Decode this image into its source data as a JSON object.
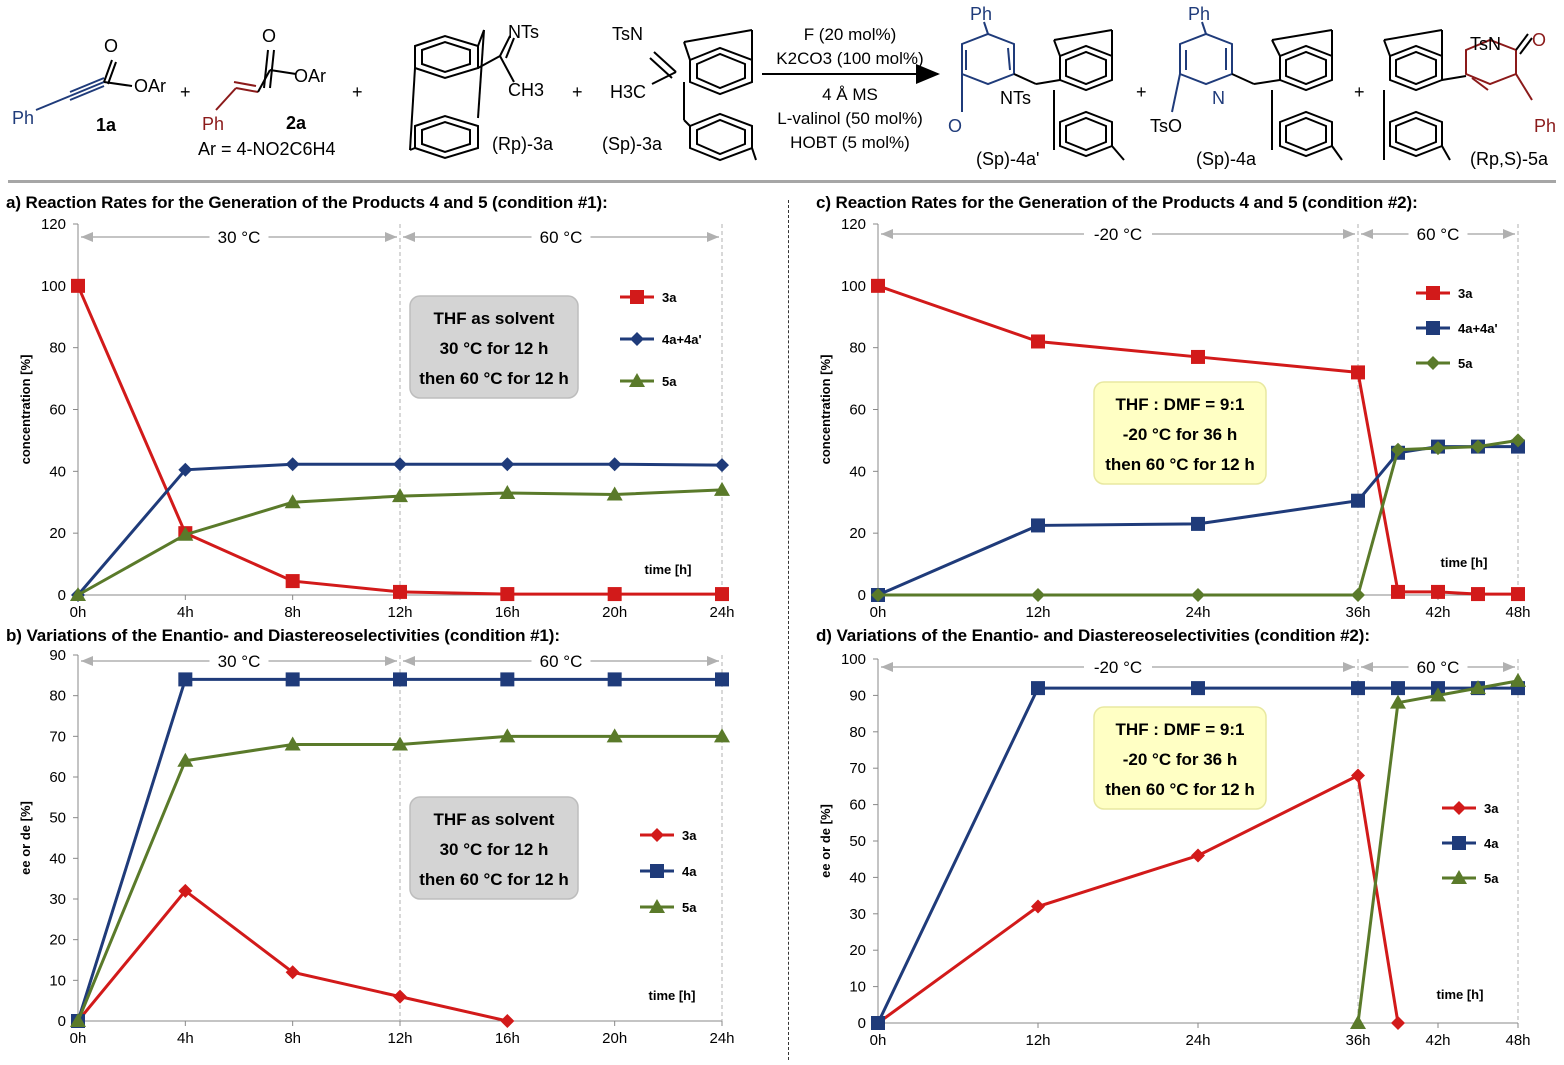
{
  "scheme": {
    "reagents": [
      {
        "id": "1a",
        "label": "1a",
        "group": "OAr",
        "substituent": "Ph"
      },
      {
        "id": "2a",
        "label": "2a",
        "group": "OAr",
        "substituent": "Ph",
        "note": "Ar = 4-NO2C6H4"
      },
      {
        "id": "Rp-3a",
        "label": "(Rp)-3a",
        "group": "NTs",
        "substituent": "CH3"
      },
      {
        "id": "Sp-3a",
        "label": "(Sp)-3a",
        "group": "TsN",
        "substituent": "H3C"
      }
    ],
    "conditions": [
      "F (20 mol%)",
      "K2CO3 (100 mol%)",
      "4 Å MS",
      "L-valinol (50 mol%)",
      "HOBT (5 mol%)"
    ],
    "products": [
      {
        "id": "Sp-4a'",
        "label": "(Sp)-4a'",
        "groups": [
          "Ph",
          "NTs",
          "O"
        ]
      },
      {
        "id": "Sp-4a",
        "label": "(Sp)-4a",
        "groups": [
          "Ph",
          "N",
          "TsO"
        ]
      },
      {
        "id": "RpS-5a",
        "label": "(Rp,S)-5a",
        "groups": [
          "TsN",
          "O",
          "Ph"
        ]
      }
    ],
    "plus": "+"
  },
  "chart_data": [
    {
      "panel": "a",
      "type": "line",
      "title": "a) Reaction Rates for the Generation of the Products 4 and 5 (condition #1):",
      "xlabel": "time [h]",
      "ylabel": "concentration [%]",
      "xlim": [
        0,
        24
      ],
      "ylim": [
        0,
        120
      ],
      "yticks": [
        0,
        20,
        40,
        60,
        80,
        100,
        120
      ],
      "xticks": [
        0,
        4,
        8,
        12,
        16,
        20,
        24
      ],
      "xtick_labels": [
        "0h",
        "4h",
        "8h",
        "12h",
        "16h",
        "20h",
        "24h"
      ],
      "phase_boundaries": [
        12,
        24
      ],
      "phases": [
        {
          "label": "30 °C",
          "from": 0,
          "to": 12
        },
        {
          "label": "60 °C",
          "from": 12,
          "to": 24
        }
      ],
      "annotation": {
        "lines": [
          "THF as solvent",
          "30 °C for 12 h",
          "then 60 °C for 12 h"
        ],
        "style": "gray"
      },
      "legend_position": "right",
      "series": [
        {
          "name": "3a",
          "color": "#d21a1a",
          "marker": "square",
          "x": [
            0,
            4,
            8,
            12,
            16,
            20,
            24
          ],
          "values": [
            100,
            20,
            4.5,
            1,
            0.3,
            0.3,
            0.3
          ]
        },
        {
          "name": "4a+4a'",
          "color": "#1f3b7a",
          "marker": "diamond",
          "x": [
            0,
            4,
            8,
            12,
            16,
            20,
            24
          ],
          "values": [
            0,
            40.5,
            42.3,
            42.3,
            42.3,
            42.3,
            42
          ]
        },
        {
          "name": "5a",
          "color": "#5a7a2a",
          "marker": "triangle",
          "x": [
            0,
            4,
            8,
            12,
            16,
            20,
            24
          ],
          "values": [
            0,
            19.5,
            30,
            32,
            33,
            32.5,
            34
          ]
        }
      ]
    },
    {
      "panel": "b",
      "type": "line",
      "title": "b) Variations of the Enantio- and Diastereoselectivities (condition #1):",
      "xlabel": "time [h]",
      "ylabel": "ee or de [%]",
      "xlim": [
        0,
        24
      ],
      "ylim": [
        0,
        90
      ],
      "yticks": [
        0,
        10,
        20,
        30,
        40,
        50,
        60,
        70,
        80,
        90
      ],
      "xticks": [
        0,
        4,
        8,
        12,
        16,
        20,
        24
      ],
      "xtick_labels": [
        "0h",
        "4h",
        "8h",
        "12h",
        "16h",
        "20h",
        "24h"
      ],
      "phase_boundaries": [
        12,
        24
      ],
      "phases": [
        {
          "label": "30 °C",
          "from": 0,
          "to": 12
        },
        {
          "label": "60 °C",
          "from": 12,
          "to": 24
        }
      ],
      "annotation": {
        "lines": [
          "THF as solvent",
          "30 °C for 12 h",
          "then 60 °C for 12 h"
        ],
        "style": "gray"
      },
      "legend_position": "right",
      "series": [
        {
          "name": "3a",
          "color": "#d21a1a",
          "marker": "diamond",
          "x": [
            0,
            4,
            8,
            12,
            16
          ],
          "values": [
            0,
            32,
            12,
            6,
            0
          ]
        },
        {
          "name": "4a",
          "color": "#1f3b7a",
          "marker": "square",
          "x": [
            0,
            4,
            8,
            12,
            16,
            20,
            24
          ],
          "values": [
            0,
            84,
            84,
            84,
            84,
            84,
            84
          ]
        },
        {
          "name": "5a",
          "color": "#5a7a2a",
          "marker": "triangle",
          "x": [
            0,
            4,
            8,
            12,
            16,
            20,
            24
          ],
          "values": [
            0,
            64,
            68,
            68,
            70,
            70,
            70
          ]
        }
      ]
    },
    {
      "panel": "c",
      "type": "line",
      "title": "c) Reaction Rates for the Generation of the Products 4 and 5 (condition #2):",
      "xlabel": "time [h]",
      "ylabel": "concentration [%]",
      "xlim": [
        0,
        48
      ],
      "ylim": [
        0,
        120
      ],
      "yticks": [
        0,
        20,
        40,
        60,
        80,
        100,
        120
      ],
      "xticks": [
        0,
        12,
        24,
        36,
        42,
        48
      ],
      "xtick_labels": [
        "0h",
        "12h",
        "24h",
        "36h",
        "42h",
        "48h"
      ],
      "phase_boundaries": [
        36,
        48
      ],
      "phases": [
        {
          "label": "-20 °C",
          "from": 0,
          "to": 36
        },
        {
          "label": "60 °C",
          "from": 36,
          "to": 48
        }
      ],
      "annotation": {
        "lines": [
          "THF : DMF = 9:1",
          "-20 °C for 36 h",
          "then 60 °C for 12 h"
        ],
        "style": "yellow"
      },
      "legend_position": "right",
      "series": [
        {
          "name": "3a",
          "color": "#d21a1a",
          "marker": "square",
          "x": [
            0,
            12,
            24,
            36,
            39,
            42,
            45,
            48
          ],
          "values": [
            100,
            82,
            77,
            72,
            1,
            1,
            0.3,
            0.3
          ]
        },
        {
          "name": "4a+4a'",
          "color": "#1f3b7a",
          "marker": "square",
          "x": [
            0,
            12,
            24,
            36,
            39,
            42,
            45,
            48
          ],
          "values": [
            0,
            22.5,
            23,
            30.5,
            46,
            48,
            48,
            48
          ]
        },
        {
          "name": "5a",
          "color": "#5a7a2a",
          "marker": "diamond",
          "x": [
            0,
            12,
            24,
            36,
            39,
            42,
            45,
            48
          ],
          "values": [
            0,
            0,
            0,
            0,
            47,
            47.5,
            48,
            50
          ]
        }
      ]
    },
    {
      "panel": "d",
      "type": "line",
      "title": "d) Variations of the Enantio- and Diastereoselectivities (condition #2):",
      "xlabel": "time [h]",
      "ylabel": "ee or de [%]",
      "xlim": [
        0,
        48
      ],
      "ylim": [
        0,
        100
      ],
      "yticks": [
        0,
        10,
        20,
        30,
        40,
        50,
        60,
        70,
        80,
        90,
        100
      ],
      "xticks": [
        0,
        12,
        24,
        36,
        42,
        48
      ],
      "xtick_labels": [
        "0h",
        "12h",
        "24h",
        "36h",
        "42h",
        "48h"
      ],
      "phase_boundaries": [
        36,
        48
      ],
      "phases": [
        {
          "label": "-20 °C",
          "from": 0,
          "to": 36
        },
        {
          "label": "60 °C",
          "from": 36,
          "to": 48
        }
      ],
      "annotation": {
        "lines": [
          "THF : DMF = 9:1",
          "-20 °C for 36 h",
          "then 60 °C for 12 h"
        ],
        "style": "yellow"
      },
      "legend_position": "right",
      "series": [
        {
          "name": "3a",
          "color": "#d21a1a",
          "marker": "diamond",
          "x": [
            0,
            12,
            24,
            36,
            39
          ],
          "values": [
            0,
            32,
            46,
            68,
            0
          ]
        },
        {
          "name": "4a",
          "color": "#1f3b7a",
          "marker": "square",
          "x": [
            0,
            12,
            24,
            36,
            39,
            42,
            45,
            48
          ],
          "values": [
            0,
            92,
            92,
            92,
            92,
            92,
            92,
            92
          ]
        },
        {
          "name": "5a",
          "color": "#5a7a2a",
          "marker": "triangle",
          "x": [
            36,
            39,
            42,
            45,
            48
          ],
          "values": [
            0,
            88,
            90,
            92,
            94
          ]
        }
      ]
    }
  ]
}
